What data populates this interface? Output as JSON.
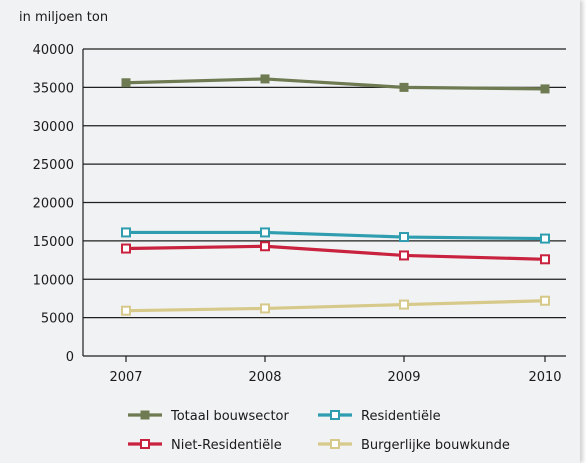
{
  "chart_data": {
    "type": "line",
    "ylabel": "in miljoen ton",
    "x": [
      "2007",
      "2008",
      "2009",
      "2010"
    ],
    "ylim": [
      0,
      40000
    ],
    "yticks": [
      0,
      5000,
      10000,
      15000,
      20000,
      25000,
      30000,
      35000,
      40000
    ],
    "grid": true,
    "legend_position": "bottom",
    "series": [
      {
        "name": "Totaal bouwsector",
        "color": "#6e7a51",
        "marker": "filled-square",
        "values": [
          35600,
          36100,
          35000,
          34800
        ]
      },
      {
        "name": "Residentiële",
        "color": "#2f9db0",
        "marker": "open-square",
        "values": [
          16100,
          16100,
          15500,
          15300
        ]
      },
      {
        "name": "Niet-Residentiële",
        "color": "#c8223e",
        "marker": "open-square",
        "values": [
          14000,
          14300,
          13100,
          12600
        ]
      },
      {
        "name": "Burgerlijke bouwkunde",
        "color": "#d6c98a",
        "marker": "open-square",
        "values": [
          5900,
          6200,
          6700,
          7200
        ]
      }
    ]
  }
}
